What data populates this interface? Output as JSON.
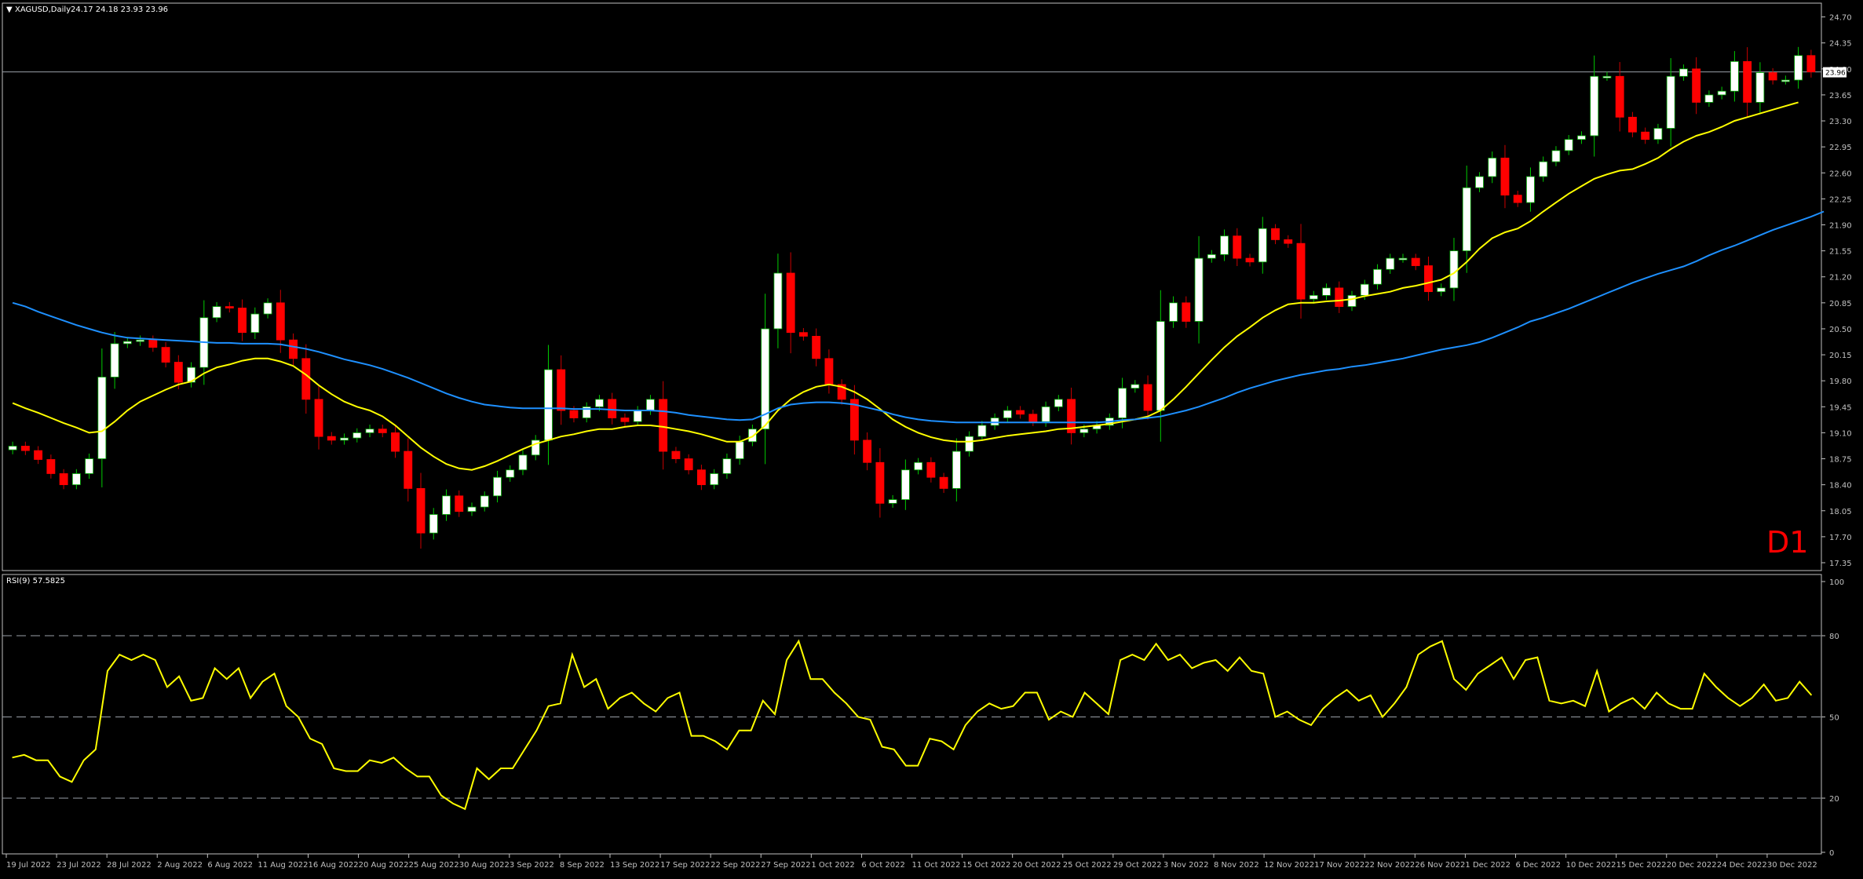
{
  "window": {
    "title": "XAGUSD,Daily",
    "ohlc": "24.17 24.18 23.93 23.96",
    "timeframe_label": "D1",
    "current_price_label": "23.96"
  },
  "rsi_panel": {
    "title": "RSI(9) 57.5825"
  },
  "colors": {
    "background": "#000000",
    "bull_candle": "#ffffff",
    "bear_candle": "#ff0000",
    "ma_fast": "#ffff00",
    "ma_slow": "#1e90ff",
    "rsi_line": "#ffff00",
    "axis": "#c0c0c0",
    "timeframe_label": "#ff0000"
  },
  "chart_data": [
    {
      "type": "candlestick",
      "symbol": "XAGUSD",
      "period": "Daily",
      "ylim": [
        17.35,
        24.78
      ],
      "y_ticks": [
        "24.70",
        "24.35",
        "24.00",
        "23.65",
        "23.30",
        "22.95",
        "22.60",
        "22.25",
        "21.90",
        "21.55",
        "21.20",
        "20.85",
        "20.50",
        "20.15",
        "19.80",
        "19.45",
        "19.10",
        "18.75",
        "18.40",
        "18.05",
        "17.70",
        "17.35"
      ],
      "x_tick_labels": [
        "19 Jul 2022",
        "23 Jul 2022",
        "28 Jul 2022",
        "2 Aug 2022",
        "6 Aug 2022",
        "11 Aug 2022",
        "16 Aug 2022",
        "20 Aug 2022",
        "25 Aug 2022",
        "30 Aug 2022",
        "3 Sep 2022",
        "8 Sep 2022",
        "13 Sep 2022",
        "17 Sep 2022",
        "22 Sep 2022",
        "27 Sep 2022",
        "1 Oct 2022",
        "6 Oct 2022",
        "11 Oct 2022",
        "15 Oct 2022",
        "20 Oct 2022",
        "25 Oct 2022",
        "29 Oct 2022",
        "3 Nov 2022",
        "8 Nov 2022",
        "12 Nov 2022",
        "17 Nov 2022",
        "22 Nov 2022",
        "26 Nov 2022",
        "1 Dec 2022",
        "6 Dec 2022",
        "10 Dec 2022",
        "15 Dec 2022",
        "20 Dec 2022",
        "24 Dec 2022",
        "30 Dec 2022"
      ],
      "close": [
        18.92,
        18.86,
        18.74,
        18.55,
        18.4,
        18.55,
        18.75,
        19.85,
        20.3,
        20.33,
        20.35,
        20.25,
        20.05,
        19.78,
        19.98,
        20.65,
        20.8,
        20.78,
        20.45,
        20.7,
        20.85,
        20.35,
        20.1,
        19.55,
        19.05,
        19.0,
        19.03,
        19.1,
        19.15,
        19.1,
        18.85,
        18.35,
        17.75,
        18.0,
        18.25,
        18.04,
        18.1,
        18.25,
        18.5,
        18.6,
        18.8,
        19.0,
        19.95,
        19.4,
        19.3,
        19.45,
        19.55,
        19.3,
        19.25,
        19.4,
        19.55,
        18.85,
        18.75,
        18.6,
        18.4,
        18.55,
        18.75,
        18.98,
        19.15,
        20.5,
        21.25,
        20.45,
        20.4,
        20.1,
        19.75,
        19.55,
        19.0,
        18.7,
        18.15,
        18.2,
        18.6,
        18.7,
        18.5,
        18.35,
        18.85,
        19.05,
        19.2,
        19.3,
        19.4,
        19.35,
        19.25,
        19.45,
        19.55,
        19.1,
        19.15,
        19.2,
        19.3,
        19.7,
        19.75,
        19.4,
        20.6,
        20.85,
        20.6,
        21.45,
        21.5,
        21.75,
        21.45,
        21.4,
        21.85,
        21.7,
        21.65,
        20.9,
        20.95,
        21.05,
        20.8,
        20.95,
        21.1,
        21.3,
        21.45,
        21.45,
        21.35,
        21.0,
        21.05,
        21.55,
        22.4,
        22.55,
        22.8,
        22.3,
        22.2,
        22.55,
        22.75,
        22.9,
        23.05,
        23.1,
        23.9,
        23.9,
        23.35,
        23.15,
        23.05,
        23.2,
        23.9,
        24.0,
        23.55,
        23.65,
        23.7,
        24.1,
        23.55,
        23.95,
        23.85,
        23.85,
        24.18,
        23.96
      ],
      "series": [
        {
          "name": "Moving Average (fast)",
          "values": [
            19.5,
            19.43,
            19.37,
            19.3,
            19.23,
            19.17,
            19.1,
            19.12,
            19.25,
            19.4,
            19.52,
            19.6,
            19.68,
            19.75,
            19.79,
            19.9,
            19.98,
            20.02,
            20.07,
            20.1,
            20.1,
            20.06,
            20.0,
            19.88,
            19.74,
            19.62,
            19.52,
            19.45,
            19.4,
            19.32,
            19.2,
            19.05,
            18.9,
            18.78,
            18.68,
            18.62,
            18.6,
            18.65,
            18.72,
            18.8,
            18.88,
            18.95,
            19.0,
            19.05,
            19.08,
            19.12,
            19.15,
            19.15,
            19.18,
            19.2,
            19.2,
            19.18,
            19.15,
            19.12,
            19.08,
            19.03,
            18.98,
            18.98,
            19.05,
            19.2,
            19.4,
            19.55,
            19.65,
            19.72,
            19.75,
            19.72,
            19.65,
            19.55,
            19.42,
            19.28,
            19.18,
            19.1,
            19.04,
            19.0,
            18.98,
            18.98,
            19.0,
            19.03,
            19.06,
            19.08,
            19.1,
            19.12,
            19.15,
            19.16,
            19.18,
            19.2,
            19.22,
            19.25,
            19.28,
            19.32,
            19.4,
            19.55,
            19.72,
            19.9,
            20.08,
            20.25,
            20.4,
            20.52,
            20.65,
            20.75,
            20.83,
            20.85,
            20.85,
            20.87,
            20.88,
            20.9,
            20.94,
            20.97,
            21.0,
            21.05,
            21.08,
            21.12,
            21.16,
            21.25,
            21.4,
            21.58,
            21.72,
            21.8,
            21.85,
            21.95,
            22.08,
            22.2,
            22.32,
            22.42,
            22.52,
            22.58,
            22.63,
            22.65,
            22.72,
            22.8,
            22.92,
            23.02,
            23.1,
            23.15,
            23.22,
            23.3,
            23.35,
            23.4,
            23.45,
            23.5,
            23.55
          ]
        },
        {
          "name": "Moving Average (slow)",
          "values": [
            20.85,
            20.8,
            20.73,
            20.67,
            20.61,
            20.55,
            20.5,
            20.45,
            20.41,
            20.38,
            20.37,
            20.36,
            20.35,
            20.34,
            20.33,
            20.32,
            20.31,
            20.31,
            20.3,
            20.3,
            20.3,
            20.29,
            20.26,
            20.23,
            20.19,
            20.14,
            20.09,
            20.05,
            20.01,
            19.96,
            19.9,
            19.84,
            19.77,
            19.7,
            19.63,
            19.57,
            19.52,
            19.48,
            19.46,
            19.44,
            19.43,
            19.43,
            19.43,
            19.43,
            19.42,
            19.42,
            19.42,
            19.41,
            19.4,
            19.4,
            19.4,
            19.39,
            19.37,
            19.34,
            19.32,
            19.3,
            19.28,
            19.27,
            19.28,
            19.35,
            19.43,
            19.48,
            19.5,
            19.51,
            19.51,
            19.5,
            19.48,
            19.44,
            19.4,
            19.35,
            19.31,
            19.28,
            19.26,
            19.25,
            19.24,
            19.24,
            19.24,
            19.24,
            19.24,
            19.24,
            19.24,
            19.24,
            19.24,
            19.24,
            19.24,
            19.24,
            19.25,
            19.27,
            19.28,
            19.3,
            19.32,
            19.36,
            19.4,
            19.45,
            19.51,
            19.57,
            19.64,
            19.7,
            19.75,
            19.8,
            19.84,
            19.88,
            19.91,
            19.94,
            19.96,
            19.99,
            20.01,
            20.04,
            20.07,
            20.1,
            20.14,
            20.18,
            20.22,
            20.25,
            20.28,
            20.32,
            20.38,
            20.45,
            20.52,
            20.6,
            20.65,
            20.71,
            20.77,
            20.84,
            20.91,
            20.98,
            21.05,
            21.12,
            21.18,
            21.24,
            21.29,
            21.34,
            21.41,
            21.49,
            21.56,
            21.62,
            21.69,
            21.76,
            21.83,
            21.89,
            21.95,
            22.01,
            22.08
          ]
        }
      ]
    },
    {
      "type": "line",
      "name": "RSI(9)",
      "ylim": [
        0,
        100
      ],
      "y_ticks": [
        "100",
        "80",
        "50",
        "20",
        "0"
      ],
      "levels": [
        80,
        50,
        20
      ],
      "series": [
        {
          "name": "RSI(9)",
          "values": [
            35,
            36,
            34,
            34,
            28,
            26,
            34,
            38,
            67,
            73,
            71,
            73,
            71,
            61,
            65,
            56,
            57,
            68,
            64,
            68,
            57,
            63,
            66,
            54,
            50,
            42,
            40,
            31,
            30,
            30,
            34,
            33,
            35,
            31,
            28,
            28,
            21,
            18,
            16,
            31,
            27,
            31,
            31,
            38,
            45,
            54,
            55,
            73,
            61,
            64,
            53,
            57,
            59,
            55,
            52,
            57,
            59,
            43,
            43,
            41,
            38,
            45,
            45,
            56,
            51,
            71,
            78,
            64,
            64,
            59,
            55,
            50,
            49,
            39,
            38,
            32,
            32,
            42,
            41,
            38,
            47,
            52,
            55,
            53,
            54,
            59,
            59,
            49,
            52,
            50,
            59,
            55,
            51,
            71,
            73,
            71,
            77,
            71,
            73,
            68,
            70,
            71,
            67,
            72,
            67,
            66,
            50,
            52,
            49,
            47,
            53,
            57,
            60,
            56,
            58,
            50,
            55,
            61,
            73,
            76,
            78,
            64,
            60,
            66,
            69,
            72,
            64,
            71,
            72,
            56,
            55,
            56,
            54,
            67,
            52,
            55,
            57,
            53,
            59,
            55,
            53,
            53,
            66,
            61,
            57,
            54,
            57,
            62,
            56,
            57,
            63,
            58
          ]
        }
      ]
    }
  ]
}
